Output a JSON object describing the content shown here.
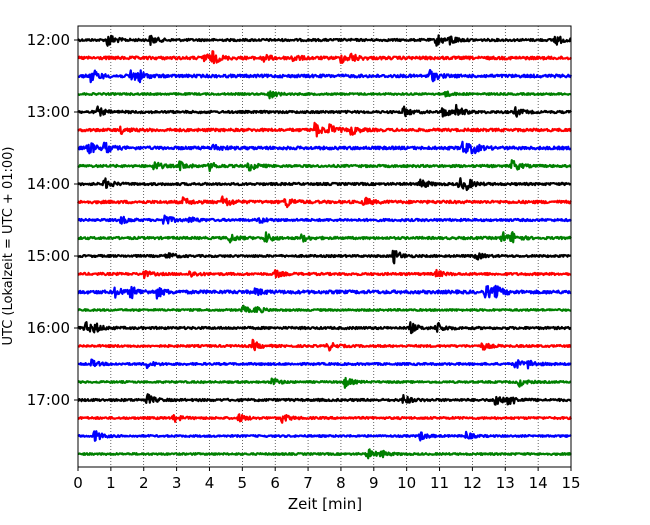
{
  "chart_data": {
    "type": "line",
    "subtype": "helicorder",
    "xlabel": "Zeit  [min]",
    "ylabel": "UTC (Lokalzeit = UTC + 01:00)",
    "xlim": [
      0,
      15
    ],
    "x_ticks": [
      0,
      1,
      2,
      3,
      4,
      5,
      6,
      7,
      8,
      9,
      10,
      11,
      12,
      13,
      14,
      15
    ],
    "x_tick_labels": [
      "0",
      "1",
      "2",
      "3",
      "4",
      "5",
      "6",
      "7",
      "8",
      "9",
      "10",
      "11",
      "12",
      "13",
      "14",
      "15"
    ],
    "row_interval_min": 15,
    "row_start": "12:00",
    "y_tick_labels": [
      "12:00",
      "13:00",
      "14:00",
      "15:00",
      "16:00",
      "17:00"
    ],
    "grid": "vertical dotted lines at each minute",
    "trace_colors": [
      "#000000",
      "#ff0000",
      "#0000ff",
      "#008000"
    ],
    "rows": [
      {
        "start": "12:00",
        "color": "#000000",
        "amplitude": 1.0,
        "bursts": [
          [
            0.9,
            3.0
          ],
          [
            2.2,
            1.8
          ],
          [
            10.9,
            2.5
          ],
          [
            11.3,
            2.0
          ],
          [
            14.5,
            2.4
          ]
        ]
      },
      {
        "start": "12:15",
        "color": "#ff0000",
        "amplitude": 1.3,
        "bursts": [
          [
            3.8,
            2.2
          ],
          [
            4.1,
            2.0
          ],
          [
            5.6,
            1.6
          ],
          [
            6.5,
            1.5
          ],
          [
            8.0,
            1.8
          ],
          [
            8.3,
            1.4
          ]
        ]
      },
      {
        "start": "12:30",
        "color": "#0000ff",
        "amplitude": 1.3,
        "bursts": [
          [
            0.4,
            3.0
          ],
          [
            1.6,
            2.5
          ],
          [
            1.8,
            2.2
          ],
          [
            10.7,
            2.6
          ]
        ]
      },
      {
        "start": "12:45",
        "color": "#008000",
        "amplitude": 0.8,
        "bursts": [
          [
            5.8,
            2.0
          ],
          [
            11.1,
            1.5
          ]
        ]
      },
      {
        "start": "13:00",
        "color": "#000000",
        "amplitude": 1.0,
        "bursts": [
          [
            0.6,
            1.8
          ],
          [
            9.9,
            2.0
          ],
          [
            11.1,
            2.2
          ],
          [
            11.5,
            2.4
          ],
          [
            13.3,
            1.8
          ]
        ]
      },
      {
        "start": "13:15",
        "color": "#ff0000",
        "amplitude": 1.2,
        "bursts": [
          [
            1.3,
            1.2
          ],
          [
            7.2,
            3.0
          ],
          [
            7.6,
            2.6
          ],
          [
            8.3,
            1.8
          ]
        ]
      },
      {
        "start": "13:30",
        "color": "#0000ff",
        "amplitude": 1.3,
        "bursts": [
          [
            0.3,
            2.8
          ],
          [
            0.8,
            2.0
          ],
          [
            4.1,
            1.5
          ],
          [
            11.7,
            3.0
          ],
          [
            12.0,
            1.8
          ]
        ]
      },
      {
        "start": "13:45",
        "color": "#008000",
        "amplitude": 1.0,
        "bursts": [
          [
            2.3,
            2.0
          ],
          [
            3.1,
            1.8
          ],
          [
            4.0,
            1.6
          ],
          [
            5.2,
            2.0
          ],
          [
            13.2,
            2.6
          ]
        ]
      },
      {
        "start": "14:00",
        "color": "#000000",
        "amplitude": 1.0,
        "bursts": [
          [
            0.8,
            2.2
          ],
          [
            10.4,
            2.3
          ],
          [
            11.6,
            2.6
          ],
          [
            11.8,
            1.8
          ]
        ]
      },
      {
        "start": "14:15",
        "color": "#ff0000",
        "amplitude": 1.2,
        "bursts": [
          [
            3.2,
            1.6
          ],
          [
            4.4,
            2.8
          ],
          [
            6.3,
            2.4
          ],
          [
            8.7,
            1.8
          ]
        ]
      },
      {
        "start": "14:30",
        "color": "#0000ff",
        "amplitude": 1.0,
        "bursts": [
          [
            1.3,
            1.5
          ],
          [
            2.6,
            2.6
          ],
          [
            3.4,
            1.2
          ],
          [
            5.5,
            1.2
          ]
        ]
      },
      {
        "start": "14:45",
        "color": "#008000",
        "amplitude": 1.0,
        "bursts": [
          [
            4.6,
            1.8
          ],
          [
            5.7,
            2.2
          ],
          [
            6.8,
            1.4
          ],
          [
            12.9,
            2.4
          ],
          [
            13.2,
            2.0
          ]
        ]
      },
      {
        "start": "15:00",
        "color": "#000000",
        "amplitude": 0.9,
        "bursts": [
          [
            2.7,
            1.6
          ],
          [
            9.6,
            3.0
          ],
          [
            12.1,
            1.5
          ]
        ]
      },
      {
        "start": "15:15",
        "color": "#ff0000",
        "amplitude": 1.0,
        "bursts": [
          [
            2.0,
            1.3
          ],
          [
            3.4,
            1.3
          ],
          [
            6.0,
            1.4
          ],
          [
            10.9,
            1.3
          ]
        ]
      },
      {
        "start": "15:30",
        "color": "#0000ff",
        "amplitude": 1.4,
        "bursts": [
          [
            1.1,
            2.2
          ],
          [
            1.6,
            2.4
          ],
          [
            2.4,
            2.0
          ],
          [
            5.4,
            1.4
          ],
          [
            12.4,
            2.8
          ],
          [
            12.7,
            2.0
          ]
        ]
      },
      {
        "start": "15:45",
        "color": "#008000",
        "amplitude": 0.8,
        "bursts": [
          [
            5.0,
            1.6
          ],
          [
            5.4,
            1.4
          ]
        ]
      },
      {
        "start": "16:00",
        "color": "#000000",
        "amplitude": 1.0,
        "bursts": [
          [
            0.2,
            2.6
          ],
          [
            0.5,
            1.6
          ],
          [
            10.1,
            2.2
          ],
          [
            10.9,
            2.4
          ]
        ]
      },
      {
        "start": "16:15",
        "color": "#ff0000",
        "amplitude": 0.9,
        "bursts": [
          [
            5.3,
            2.2
          ],
          [
            7.6,
            1.8
          ],
          [
            12.3,
            1.5
          ]
        ]
      },
      {
        "start": "16:30",
        "color": "#0000ff",
        "amplitude": 0.9,
        "bursts": [
          [
            0.4,
            1.5
          ],
          [
            2.1,
            1.3
          ],
          [
            13.3,
            2.0
          ],
          [
            13.7,
            1.6
          ]
        ]
      },
      {
        "start": "16:45",
        "color": "#008000",
        "amplitude": 0.8,
        "bursts": [
          [
            5.9,
            1.8
          ],
          [
            8.1,
            2.2
          ],
          [
            13.4,
            1.8
          ]
        ]
      },
      {
        "start": "17:00",
        "color": "#000000",
        "amplitude": 1.0,
        "bursts": [
          [
            2.1,
            2.2
          ],
          [
            9.9,
            2.0
          ],
          [
            12.7,
            3.0
          ],
          [
            13.1,
            2.2
          ]
        ]
      },
      {
        "start": "17:15",
        "color": "#ff0000",
        "amplitude": 0.9,
        "bursts": [
          [
            2.9,
            1.5
          ],
          [
            4.9,
            1.6
          ],
          [
            6.2,
            1.8
          ]
        ]
      },
      {
        "start": "17:30",
        "color": "#0000ff",
        "amplitude": 0.8,
        "bursts": [
          [
            0.5,
            2.4
          ],
          [
            10.4,
            1.8
          ],
          [
            11.8,
            1.5
          ]
        ]
      },
      {
        "start": "17:45",
        "color": "#008000",
        "amplitude": 0.8,
        "bursts": [
          [
            8.8,
            2.2
          ],
          [
            9.2,
            1.4
          ]
        ]
      }
    ]
  }
}
